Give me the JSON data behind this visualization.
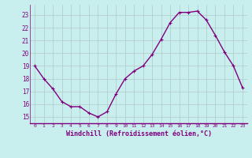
{
  "x": [
    0,
    1,
    2,
    3,
    4,
    5,
    6,
    7,
    8,
    9,
    10,
    11,
    12,
    13,
    14,
    15,
    16,
    17,
    18,
    19,
    20,
    21,
    22,
    23
  ],
  "y": [
    19,
    18,
    17.2,
    16.2,
    15.8,
    15.8,
    15.3,
    15.0,
    15.4,
    16.8,
    18.0,
    18.6,
    19.0,
    19.9,
    21.1,
    22.4,
    23.2,
    23.2,
    23.3,
    22.6,
    21.4,
    20.1,
    19.0,
    17.3
  ],
  "line_color": "#800080",
  "marker": "+",
  "marker_size": 3,
  "linewidth": 1.0,
  "bg_color": "#c8eeed",
  "grid_color": "#b0c8c8",
  "xlabel": "Windchill (Refroidissement éolien,°C)",
  "xlabel_color": "#800080",
  "tick_color": "#800080",
  "spine_color": "#800080",
  "ylim": [
    14.5,
    23.8
  ],
  "xlim": [
    -0.5,
    23.5
  ],
  "yticks": [
    15,
    16,
    17,
    18,
    19,
    20,
    21,
    22,
    23
  ],
  "xticks": [
    0,
    1,
    2,
    3,
    4,
    5,
    6,
    7,
    8,
    9,
    10,
    11,
    12,
    13,
    14,
    15,
    16,
    17,
    18,
    19,
    20,
    21,
    22,
    23
  ],
  "xtick_labels": [
    "0",
    "1",
    "2",
    "3",
    "4",
    "5",
    "6",
    "7",
    "8",
    "9",
    "10",
    "11",
    "12",
    "13",
    "14",
    "15",
    "16",
    "17",
    "18",
    "19",
    "20",
    "21",
    "22",
    "23"
  ],
  "ytick_labels": [
    "15",
    "16",
    "17",
    "18",
    "19",
    "20",
    "21",
    "22",
    "23"
  ]
}
